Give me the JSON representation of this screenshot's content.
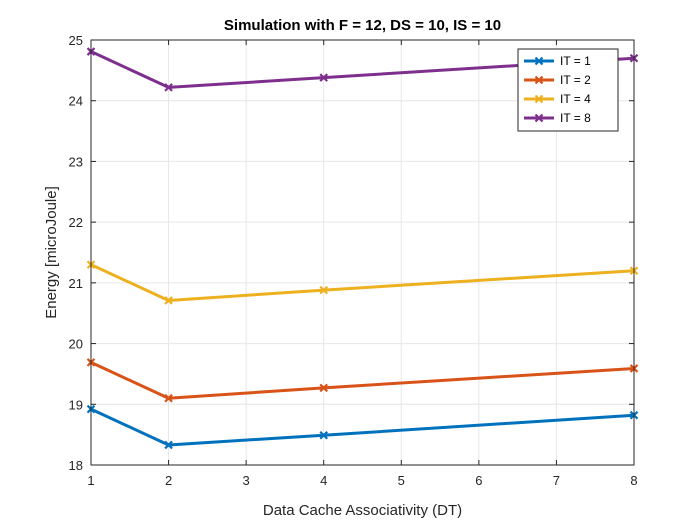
{
  "chart_data": {
    "type": "line",
    "title": "Simulation with F = 12, DS = 10, IS = 10",
    "xlabel": "Data Cache Associativity (DT)",
    "ylabel": "Energy [microJoule]",
    "x": [
      1,
      2,
      4,
      8
    ],
    "xlim": [
      1,
      8
    ],
    "ylim": [
      18,
      25
    ],
    "xticks": [
      1,
      2,
      3,
      4,
      5,
      6,
      7,
      8
    ],
    "yticks": [
      18,
      19,
      20,
      21,
      22,
      23,
      24,
      25
    ],
    "grid": true,
    "legend_position": "top-right",
    "series": [
      {
        "name": "IT = 1",
        "color": "#0072BD",
        "values": [
          18.92,
          18.33,
          18.49,
          18.82
        ]
      },
      {
        "name": "IT = 2",
        "color": "#D95319",
        "values": [
          19.69,
          19.1,
          19.27,
          19.59
        ]
      },
      {
        "name": "IT = 4",
        "color": "#EDB120",
        "values": [
          21.3,
          20.71,
          20.88,
          21.2
        ]
      },
      {
        "name": "IT = 8",
        "color": "#7E2F8E",
        "values": [
          24.81,
          24.22,
          24.38,
          24.7
        ]
      }
    ]
  }
}
